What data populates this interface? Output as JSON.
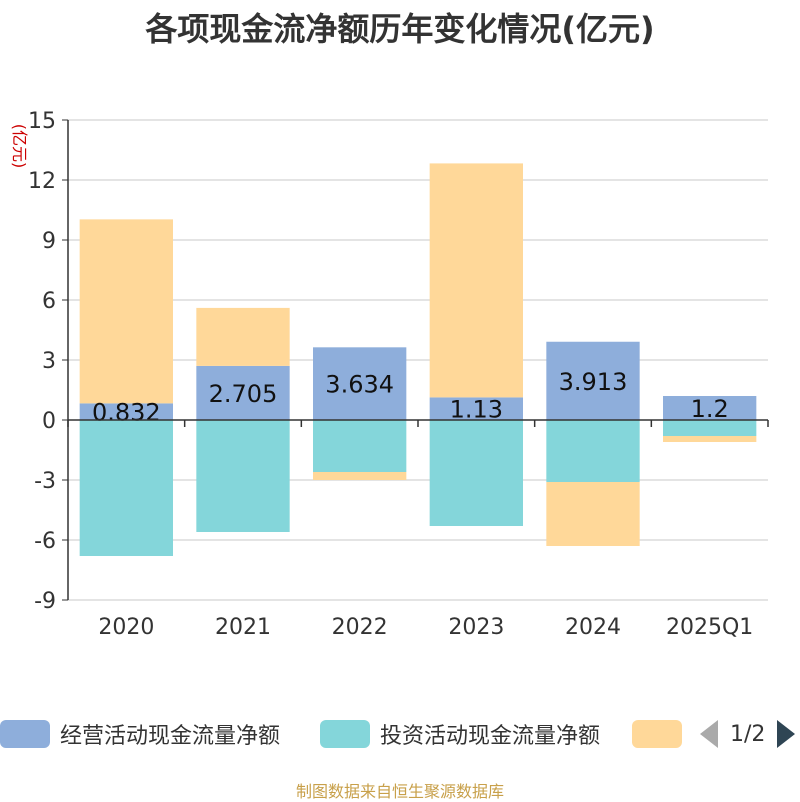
{
  "chart_data": {
    "type": "bar",
    "stacked": true,
    "title": "各项现金流净额历年变化情况(亿元)",
    "ylabel": "(亿元)",
    "categories": [
      "2020",
      "2021",
      "2022",
      "2023",
      "2024",
      "2025Q1"
    ],
    "ylim": [
      -9,
      15
    ],
    "yticks": [
      15,
      12,
      9,
      6,
      3,
      0,
      -3,
      -6,
      -9
    ],
    "grid": true,
    "series": [
      {
        "name": "经营活动现金流量净额",
        "color": "#8eaedb",
        "values": [
          0.832,
          2.705,
          3.634,
          1.13,
          3.913,
          1.2
        ],
        "show_labels": true
      },
      {
        "name": "投资活动现金流量净额",
        "color": "#84d6da",
        "values": [
          -6.8,
          -5.6,
          -2.6,
          -5.3,
          -3.1,
          -0.8
        ],
        "show_labels": false
      },
      {
        "name": "",
        "color": "#ffd899",
        "values": [
          9.2,
          2.9,
          -0.4,
          11.7,
          -3.2,
          -0.3
        ],
        "show_labels": false
      }
    ],
    "legend_position": "bottom"
  },
  "legend": {
    "pager_text": "1/2"
  },
  "source_note": "制图数据来自恒生聚源数据库"
}
